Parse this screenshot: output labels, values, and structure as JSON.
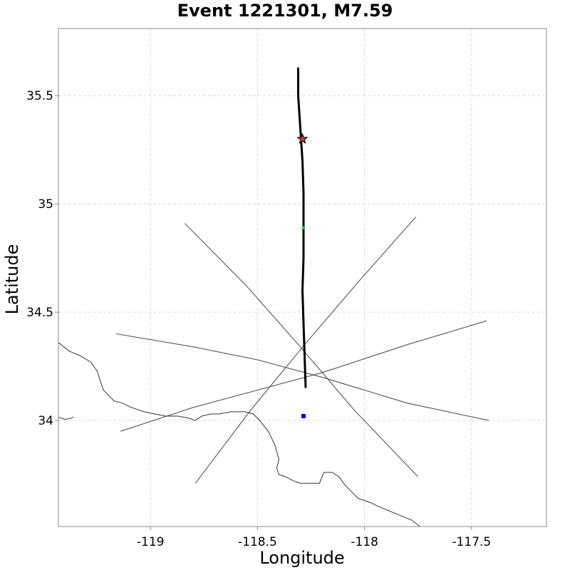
{
  "chart_data": {
    "type": "scatter",
    "title": "Event 1221301, M7.59",
    "xlabel": "Longitude",
    "ylabel": "Latitude",
    "xlim": [
      -119.43,
      -117.15
    ],
    "ylim": [
      33.51,
      35.81
    ],
    "grid": true,
    "x_ticks": [
      -119,
      -118.5,
      -118,
      -117.5
    ],
    "x_tick_labels": [
      "-119",
      "-118.5",
      "-118",
      "-117.5"
    ],
    "y_ticks": [
      34,
      34.5,
      35,
      35.5
    ],
    "y_tick_labels": [
      "34",
      "34.5",
      "35",
      "35.5"
    ],
    "colors": {
      "rupture": "#000000",
      "lines": "#555555",
      "coast": "#333333",
      "hypocenter": "#cc3333",
      "green_marker": "#22cc22",
      "blue_marker": "#0000ee"
    },
    "rupture_trace": [
      [
        -118.31,
        35.63
      ],
      [
        -118.31,
        35.5
      ],
      [
        -118.3,
        35.35
      ],
      [
        -118.29,
        35.2
      ],
      [
        -118.285,
        35.05
      ],
      [
        -118.285,
        34.9
      ],
      [
        -118.285,
        34.75
      ],
      [
        -118.29,
        34.6
      ],
      [
        -118.285,
        34.45
      ],
      [
        -118.28,
        34.3
      ],
      [
        -118.275,
        34.15
      ]
    ],
    "lines": [
      [
        [
          -118.84,
          34.91
        ],
        [
          -118.55,
          34.62
        ],
        [
          -118.3,
          34.34
        ],
        [
          -118.05,
          34.05
        ],
        [
          -117.75,
          33.74
        ]
      ],
      [
        [
          -118.79,
          33.71
        ],
        [
          -118.53,
          34.05
        ],
        [
          -118.28,
          34.35
        ],
        [
          -118.02,
          34.65
        ],
        [
          -117.76,
          34.94
        ]
      ],
      [
        [
          -119.16,
          34.4
        ],
        [
          -118.8,
          34.34
        ],
        [
          -118.5,
          34.28
        ],
        [
          -118.2,
          34.2
        ],
        [
          -117.8,
          34.08
        ],
        [
          -117.42,
          34.0
        ]
      ],
      [
        [
          -119.14,
          33.95
        ],
        [
          -118.8,
          34.06
        ],
        [
          -118.5,
          34.14
        ],
        [
          -118.2,
          34.22
        ],
        [
          -117.8,
          34.35
        ],
        [
          -117.43,
          34.46
        ]
      ]
    ],
    "coastline": [
      [
        [
          -119.43,
          34.36
        ],
        [
          -119.38,
          34.32
        ],
        [
          -119.33,
          34.3
        ],
        [
          -119.28,
          34.27
        ],
        [
          -119.25,
          34.23
        ],
        [
          -119.22,
          34.14
        ],
        [
          -119.17,
          34.09
        ],
        [
          -119.13,
          34.08
        ],
        [
          -119.09,
          34.06
        ],
        [
          -119.03,
          34.04
        ],
        [
          -118.98,
          34.03
        ],
        [
          -118.93,
          34.02
        ],
        [
          -118.87,
          34.02
        ],
        [
          -118.82,
          34.01
        ],
        [
          -118.79,
          34.0
        ],
        [
          -118.76,
          34.02
        ],
        [
          -118.72,
          34.03
        ],
        [
          -118.68,
          34.03
        ],
        [
          -118.62,
          34.04
        ],
        [
          -118.56,
          34.04
        ],
        [
          -118.52,
          34.03
        ],
        [
          -118.49,
          34.0
        ],
        [
          -118.45,
          33.95
        ],
        [
          -118.42,
          33.89
        ],
        [
          -118.4,
          33.82
        ],
        [
          -118.41,
          33.78
        ],
        [
          -118.4,
          33.75
        ],
        [
          -118.37,
          33.74
        ],
        [
          -118.33,
          33.72
        ],
        [
          -118.3,
          33.71
        ],
        [
          -118.25,
          33.71
        ],
        [
          -118.21,
          33.71
        ],
        [
          -118.19,
          33.76
        ],
        [
          -118.15,
          33.76
        ],
        [
          -118.12,
          33.74
        ],
        [
          -118.09,
          33.7
        ],
        [
          -118.03,
          33.64
        ],
        [
          -117.97,
          33.62
        ],
        [
          -117.93,
          33.6
        ],
        [
          -117.88,
          33.58
        ],
        [
          -117.83,
          33.56
        ],
        [
          -117.78,
          33.54
        ],
        [
          -117.74,
          33.51
        ]
      ],
      [
        [
          -119.43,
          34.015
        ],
        [
          -119.4,
          34.005
        ],
        [
          -119.37,
          34.01
        ],
        [
          -119.36,
          34.015
        ]
      ]
    ],
    "hypocenter": [
      -118.29,
      35.3
    ],
    "green_marker": [
      -118.285,
      34.89
    ],
    "blue_marker": [
      -118.285,
      34.02
    ]
  }
}
